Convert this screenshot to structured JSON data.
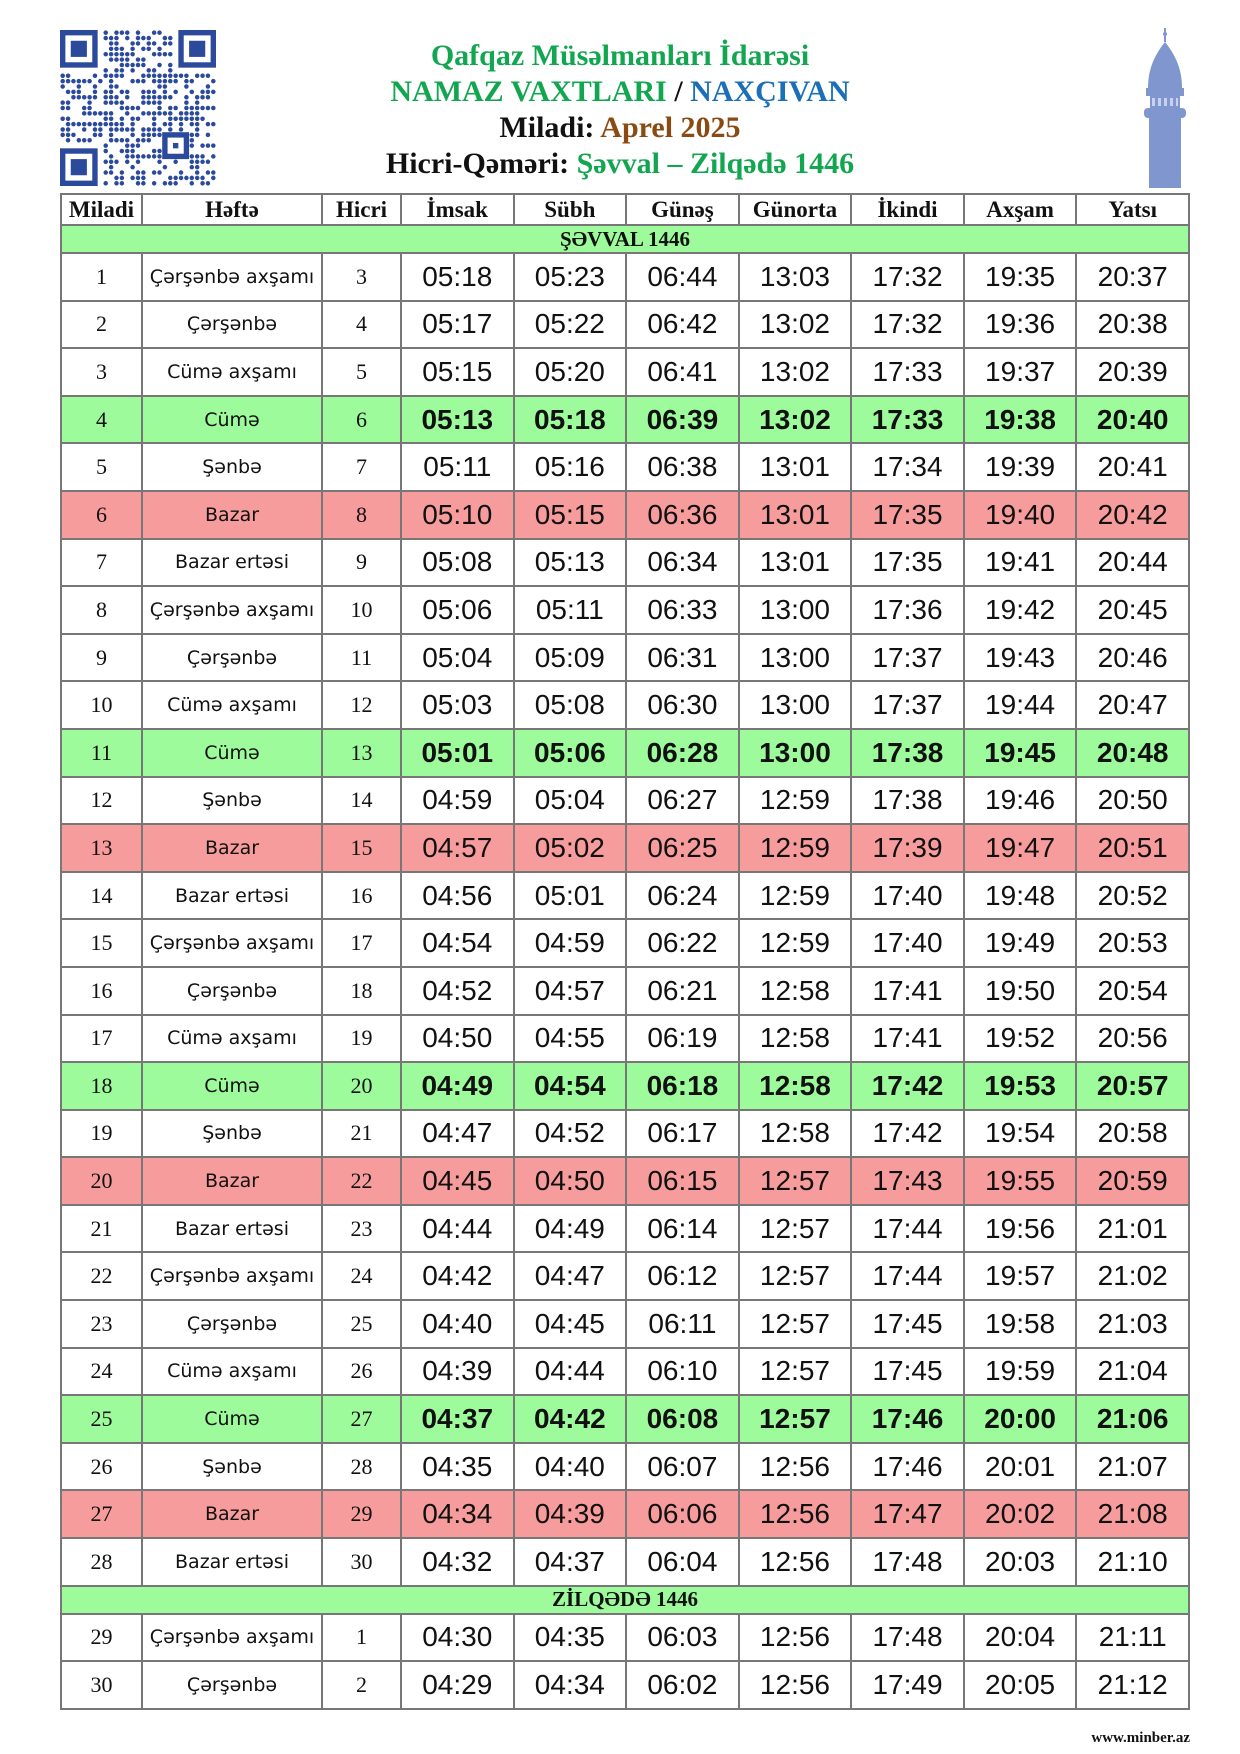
{
  "header": {
    "org": "Qafqaz Müsəlmanları İdarəsi",
    "title_left": "NAMAZ VAXTLARI",
    "title_sep": "/",
    "title_city": "NAXÇIVAN",
    "miladi_label": "Miladi:",
    "miladi_value": "Aprel 2025",
    "hicri_label": "Hicri-Qəməri:",
    "hicri_value": "Şəvval – Zilqədə 1446"
  },
  "colors": {
    "green": "#13a650",
    "blue": "#1a6fb8",
    "brown": "#8b4a12",
    "friday_row": "#9dfb9c",
    "sunday_row": "#f79c9c",
    "qr": "#2b4a9c",
    "minaret": "#7f96cf"
  },
  "icons": {
    "qr": "qr-code",
    "minaret": "minaret-icon"
  },
  "table": {
    "columns": [
      "Miladi",
      "Həftə",
      "Hicri",
      "İmsak",
      "Sübh",
      "Günəş",
      "Günorta",
      "İkindi",
      "Axşam",
      "Yatsı"
    ],
    "sections": [
      {
        "title": "ŞƏVVAL 1446",
        "rows": [
          [
            "1",
            "Çərşənbə axşamı",
            "3",
            "05:18",
            "05:23",
            "06:44",
            "13:03",
            "17:32",
            "19:35",
            "20:37",
            ""
          ],
          [
            "2",
            "Çərşənbə",
            "4",
            "05:17",
            "05:22",
            "06:42",
            "13:02",
            "17:32",
            "19:36",
            "20:38",
            ""
          ],
          [
            "3",
            "Cümə axşamı",
            "5",
            "05:15",
            "05:20",
            "06:41",
            "13:02",
            "17:33",
            "19:37",
            "20:39",
            ""
          ],
          [
            "4",
            "Cümə",
            "6",
            "05:13",
            "05:18",
            "06:39",
            "13:02",
            "17:33",
            "19:38",
            "20:40",
            "friday"
          ],
          [
            "5",
            "Şənbə",
            "7",
            "05:11",
            "05:16",
            "06:38",
            "13:01",
            "17:34",
            "19:39",
            "20:41",
            ""
          ],
          [
            "6",
            "Bazar",
            "8",
            "05:10",
            "05:15",
            "06:36",
            "13:01",
            "17:35",
            "19:40",
            "20:42",
            "sunday"
          ],
          [
            "7",
            "Bazar ertəsi",
            "9",
            "05:08",
            "05:13",
            "06:34",
            "13:01",
            "17:35",
            "19:41",
            "20:44",
            ""
          ],
          [
            "8",
            "Çərşənbə axşamı",
            "10",
            "05:06",
            "05:11",
            "06:33",
            "13:00",
            "17:36",
            "19:42",
            "20:45",
            ""
          ],
          [
            "9",
            "Çərşənbə",
            "11",
            "05:04",
            "05:09",
            "06:31",
            "13:00",
            "17:37",
            "19:43",
            "20:46",
            ""
          ],
          [
            "10",
            "Cümə axşamı",
            "12",
            "05:03",
            "05:08",
            "06:30",
            "13:00",
            "17:37",
            "19:44",
            "20:47",
            ""
          ],
          [
            "11",
            "Cümə",
            "13",
            "05:01",
            "05:06",
            "06:28",
            "13:00",
            "17:38",
            "19:45",
            "20:48",
            "friday"
          ],
          [
            "12",
            "Şənbə",
            "14",
            "04:59",
            "05:04",
            "06:27",
            "12:59",
            "17:38",
            "19:46",
            "20:50",
            ""
          ],
          [
            "13",
            "Bazar",
            "15",
            "04:57",
            "05:02",
            "06:25",
            "12:59",
            "17:39",
            "19:47",
            "20:51",
            "sunday"
          ],
          [
            "14",
            "Bazar ertəsi",
            "16",
            "04:56",
            "05:01",
            "06:24",
            "12:59",
            "17:40",
            "19:48",
            "20:52",
            ""
          ],
          [
            "15",
            "Çərşənbə axşamı",
            "17",
            "04:54",
            "04:59",
            "06:22",
            "12:59",
            "17:40",
            "19:49",
            "20:53",
            ""
          ],
          [
            "16",
            "Çərşənbə",
            "18",
            "04:52",
            "04:57",
            "06:21",
            "12:58",
            "17:41",
            "19:50",
            "20:54",
            ""
          ],
          [
            "17",
            "Cümə axşamı",
            "19",
            "04:50",
            "04:55",
            "06:19",
            "12:58",
            "17:41",
            "19:52",
            "20:56",
            ""
          ],
          [
            "18",
            "Cümə",
            "20",
            "04:49",
            "04:54",
            "06:18",
            "12:58",
            "17:42",
            "19:53",
            "20:57",
            "friday"
          ],
          [
            "19",
            "Şənbə",
            "21",
            "04:47",
            "04:52",
            "06:17",
            "12:58",
            "17:42",
            "19:54",
            "20:58",
            ""
          ],
          [
            "20",
            "Bazar",
            "22",
            "04:45",
            "04:50",
            "06:15",
            "12:57",
            "17:43",
            "19:55",
            "20:59",
            "sunday"
          ],
          [
            "21",
            "Bazar ertəsi",
            "23",
            "04:44",
            "04:49",
            "06:14",
            "12:57",
            "17:44",
            "19:56",
            "21:01",
            ""
          ],
          [
            "22",
            "Çərşənbə axşamı",
            "24",
            "04:42",
            "04:47",
            "06:12",
            "12:57",
            "17:44",
            "19:57",
            "21:02",
            ""
          ],
          [
            "23",
            "Çərşənbə",
            "25",
            "04:40",
            "04:45",
            "06:11",
            "12:57",
            "17:45",
            "19:58",
            "21:03",
            ""
          ],
          [
            "24",
            "Cümə axşamı",
            "26",
            "04:39",
            "04:44",
            "06:10",
            "12:57",
            "17:45",
            "19:59",
            "21:04",
            ""
          ],
          [
            "25",
            "Cümə",
            "27",
            "04:37",
            "04:42",
            "06:08",
            "12:57",
            "17:46",
            "20:00",
            "21:06",
            "friday"
          ],
          [
            "26",
            "Şənbə",
            "28",
            "04:35",
            "04:40",
            "06:07",
            "12:56",
            "17:46",
            "20:01",
            "21:07",
            ""
          ],
          [
            "27",
            "Bazar",
            "29",
            "04:34",
            "04:39",
            "06:06",
            "12:56",
            "17:47",
            "20:02",
            "21:08",
            "sunday"
          ],
          [
            "28",
            "Bazar ertəsi",
            "30",
            "04:32",
            "04:37",
            "06:04",
            "12:56",
            "17:48",
            "20:03",
            "21:10",
            ""
          ]
        ]
      },
      {
        "title": "ZİLQƏDƏ 1446",
        "rows": [
          [
            "29",
            "Çərşənbə axşamı",
            "1",
            "04:30",
            "04:35",
            "06:03",
            "12:56",
            "17:48",
            "20:04",
            "21:11",
            ""
          ],
          [
            "30",
            "Çərşənbə",
            "2",
            "04:29",
            "04:34",
            "06:02",
            "12:56",
            "17:49",
            "20:05",
            "21:12",
            ""
          ]
        ]
      }
    ]
  },
  "footer": {
    "website": "www.minber.az"
  }
}
